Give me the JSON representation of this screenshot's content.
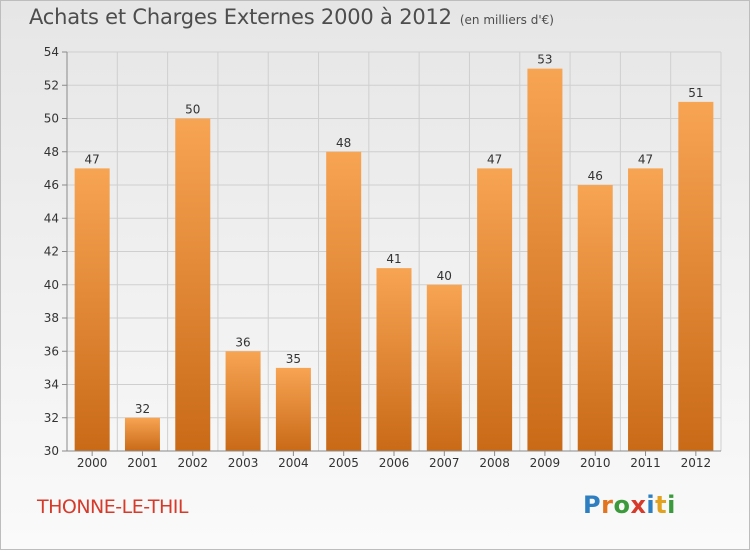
{
  "title": "Achats et Charges Externes 2000 à 2012",
  "unit": "(en milliers d'€)",
  "place": "THONNE-LE-THIL",
  "logo": {
    "text": "Proxiti",
    "letters": [
      {
        "char": "P",
        "color": "#2e7fc1"
      },
      {
        "char": "r",
        "color": "#e2731f"
      },
      {
        "char": "o",
        "color": "#3b9a3b"
      },
      {
        "char": "x",
        "color": "#d63a2a"
      },
      {
        "char": "i",
        "color": "#2e7fc1"
      },
      {
        "char": "t",
        "color": "#e2a21f"
      },
      {
        "char": "i",
        "color": "#3b9a3b"
      }
    ]
  },
  "colors": {
    "bar_top": "#f7a453",
    "bar_bottom": "#c96a17",
    "grid": "#cfcfcf",
    "axis": "#8a8a8a",
    "text": "#333333"
  },
  "chart_data": {
    "type": "bar",
    "categories": [
      "2000",
      "2001",
      "2002",
      "2003",
      "2004",
      "2005",
      "2006",
      "2007",
      "2008",
      "2009",
      "2010",
      "2011",
      "2012"
    ],
    "values": [
      47,
      32,
      50,
      36,
      35,
      48,
      41,
      40,
      47,
      53,
      46,
      47,
      51
    ],
    "data_labels": [
      "47",
      "32",
      "50",
      "36",
      "35",
      "48",
      "41",
      "40",
      "47",
      "53",
      "46",
      "47",
      "51"
    ],
    "ylim": [
      30,
      54
    ],
    "yticks": [
      30,
      32,
      34,
      36,
      38,
      40,
      42,
      44,
      46,
      48,
      50,
      52,
      54
    ],
    "grid": true
  }
}
